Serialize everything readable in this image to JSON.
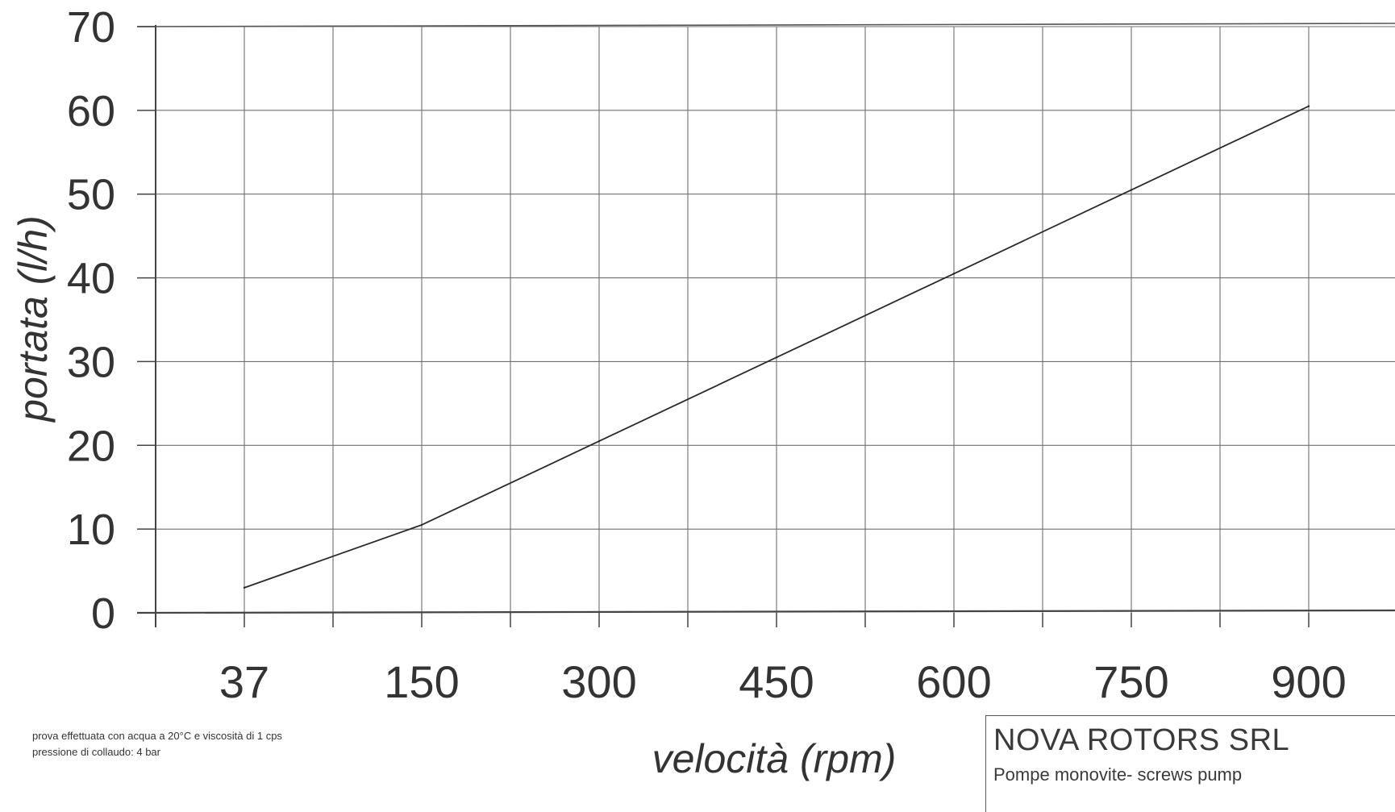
{
  "chart_data": {
    "type": "line",
    "xlabel": "velocità (rpm)",
    "ylabel": "portata (l/h)",
    "x_ticks": [
      "37",
      "150",
      "300",
      "450",
      "600",
      "750",
      "900"
    ],
    "y_ticks": [
      "0",
      "10",
      "20",
      "30",
      "40",
      "50",
      "60",
      "70"
    ],
    "ylim": [
      0,
      70
    ],
    "grid": true,
    "series": [
      {
        "x": [
          "37",
          "150",
          "300",
          "450",
          "600",
          "750",
          "900"
        ],
        "values": [
          3,
          10.5,
          20.5,
          30.5,
          40.5,
          50.5,
          60.5
        ]
      }
    ]
  },
  "notes": [
    "prova effettuata con acqua a 20°C e viscosità di 1 cps",
    "pressione di collaudo: 4 bar"
  ],
  "company": {
    "name": "NOVA ROTORS SRL",
    "subtitle": "Pompe monovite- screws pump"
  }
}
